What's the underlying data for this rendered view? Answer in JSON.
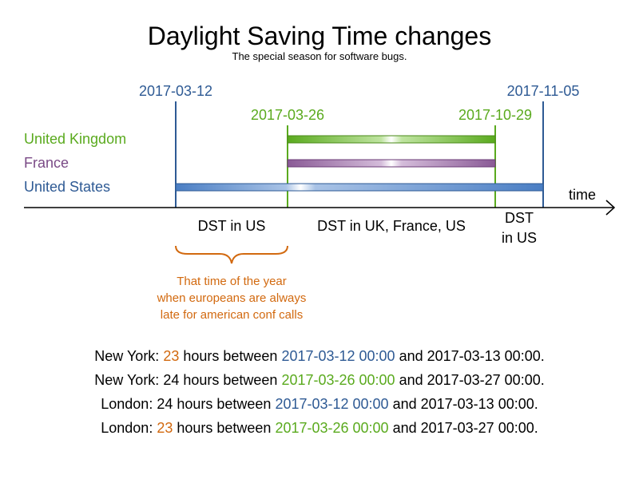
{
  "title": "Daylight Saving Time changes",
  "subtitle": "The special season for software bugs.",
  "colors": {
    "us": "#2e5a94",
    "uk": "#5aaa1e",
    "france": "#7a4a86",
    "accent": "#d2690f",
    "text": "#000000"
  },
  "dates": {
    "us_start": "2017-03-12",
    "eu_start": "2017-03-26",
    "eu_end": "2017-10-29",
    "us_end": "2017-11-05"
  },
  "countries": {
    "uk": "United Kingdom",
    "france": "France",
    "us": "United States"
  },
  "axis_label": "time",
  "periods": {
    "us_only_1": "DST in US",
    "all": "DST in UK, France, US",
    "us_only_2_line1": "DST",
    "us_only_2_line2": "in US"
  },
  "annotation": [
    "That time of the year",
    "when europeans are always",
    "late for american conf calls"
  ],
  "facts": [
    {
      "place": "New York: ",
      "hours": "23",
      "mid": " hours between ",
      "date": "2017-03-12 00:00",
      "rest": " and 2017-03-13 00:00."
    },
    {
      "place": "New York: ",
      "hours": "24",
      "mid": " hours between ",
      "date": "2017-03-26 00:00",
      "rest": " and 2017-03-27 00:00."
    },
    {
      "place": "London: ",
      "hours": "24",
      "mid": " hours between ",
      "date": "2017-03-12 00:00",
      "rest": " and 2017-03-13 00:00."
    },
    {
      "place": "London: ",
      "hours": "23",
      "mid": " hours between ",
      "date": "2017-03-26 00:00",
      "rest": " and 2017-03-27 00:00."
    }
  ]
}
